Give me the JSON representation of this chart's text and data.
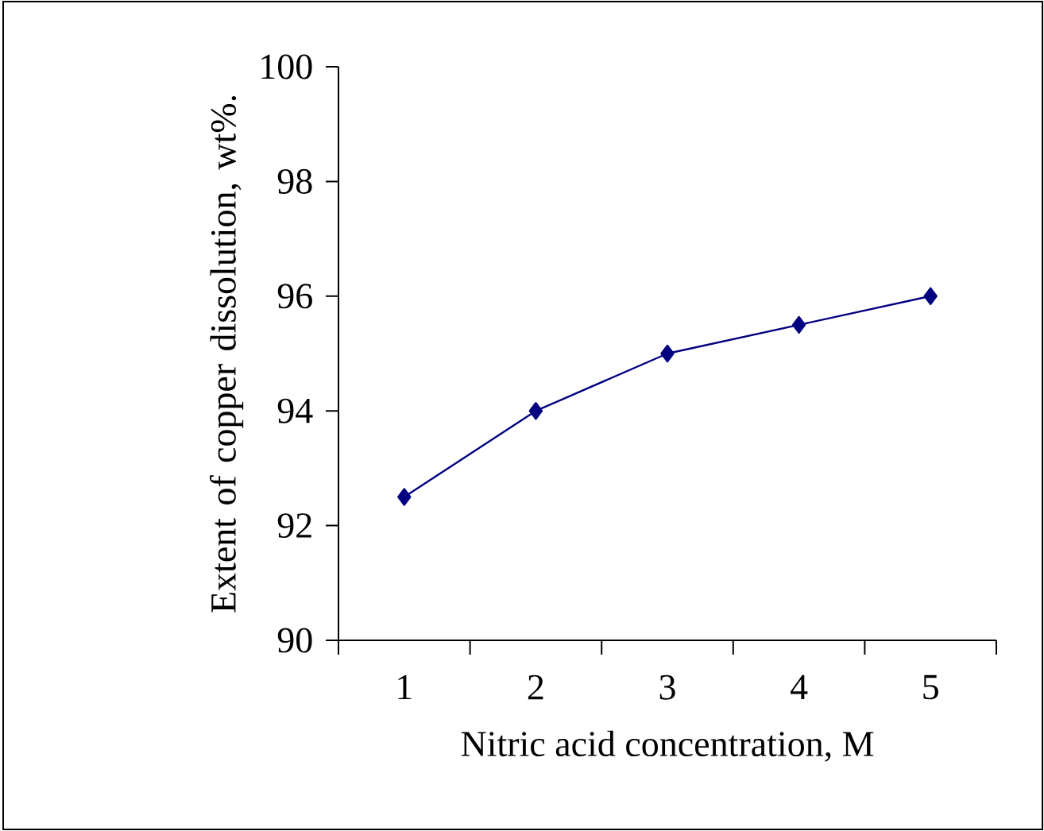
{
  "chart_data": {
    "type": "line",
    "xlabel": "Nitric acid concentration, M",
    "ylabel": "Extent of copper dissolution, wt%.",
    "categories": [
      "1",
      "2",
      "3",
      "4",
      "5"
    ],
    "series": [
      {
        "color": "#000080",
        "values": [
          92.5,
          94,
          95,
          95.5,
          96
        ]
      }
    ],
    "ylim": [
      90,
      100
    ],
    "yticks": [
      90,
      92,
      94,
      96,
      98,
      100
    ],
    "grid": false,
    "marker": "diamond",
    "line_style": "solid"
  }
}
